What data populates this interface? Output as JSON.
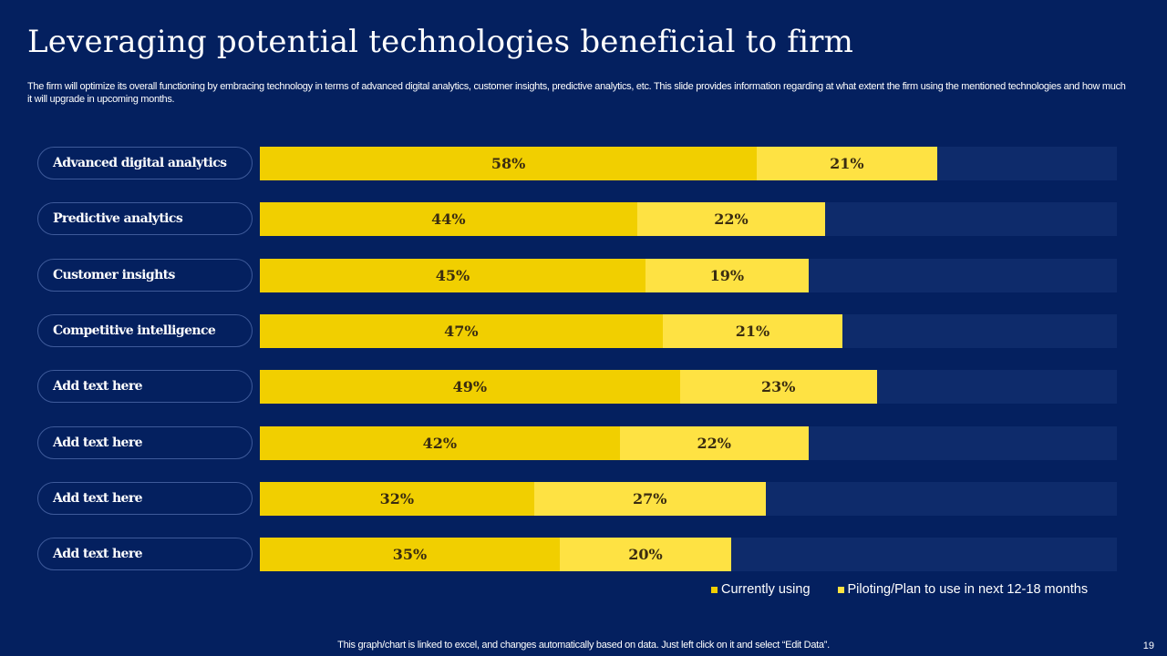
{
  "slide": {
    "title": "Leveraging potential technologies beneficial to firm",
    "subtitle": "The firm will optimize its overall functioning by embracing technology in terms of advanced digital analytics, customer insights, predictive analytics, etc. This slide provides information regarding at what extent the firm using the mentioned technologies and how much it will upgrade in upcoming months.",
    "footer_note": "This graph/chart is linked to excel, and changes automatically based on data. Just left click on it and select “Edit Data”.",
    "page_number": "19"
  },
  "colors": {
    "background": "#04205f",
    "track": "#0e2b6b",
    "currently_using": "#f1cf00",
    "piloting": "#fee243"
  },
  "chart_data": {
    "type": "bar",
    "orientation": "horizontal",
    "stacked": true,
    "title": "Leveraging potential technologies beneficial to firm",
    "xlabel": "",
    "ylabel": "",
    "xlim": [
      0,
      100
    ],
    "unit": "%",
    "grid": false,
    "legend_position": "bottom-right",
    "categories": [
      "Advanced digital analytics",
      "Predictive analytics",
      "Customer insights",
      "Competitive intelligence",
      "Add text here",
      "Add text here",
      "Add text here",
      "Add text here"
    ],
    "series": [
      {
        "name": "Currently using",
        "color": "#f1cf00",
        "values": [
          58,
          44,
          45,
          47,
          49,
          42,
          32,
          35
        ]
      },
      {
        "name": "Piloting/Plan to use in next 12-18 months",
        "color": "#fee243",
        "values": [
          21,
          22,
          19,
          21,
          23,
          22,
          27,
          20
        ]
      }
    ]
  }
}
